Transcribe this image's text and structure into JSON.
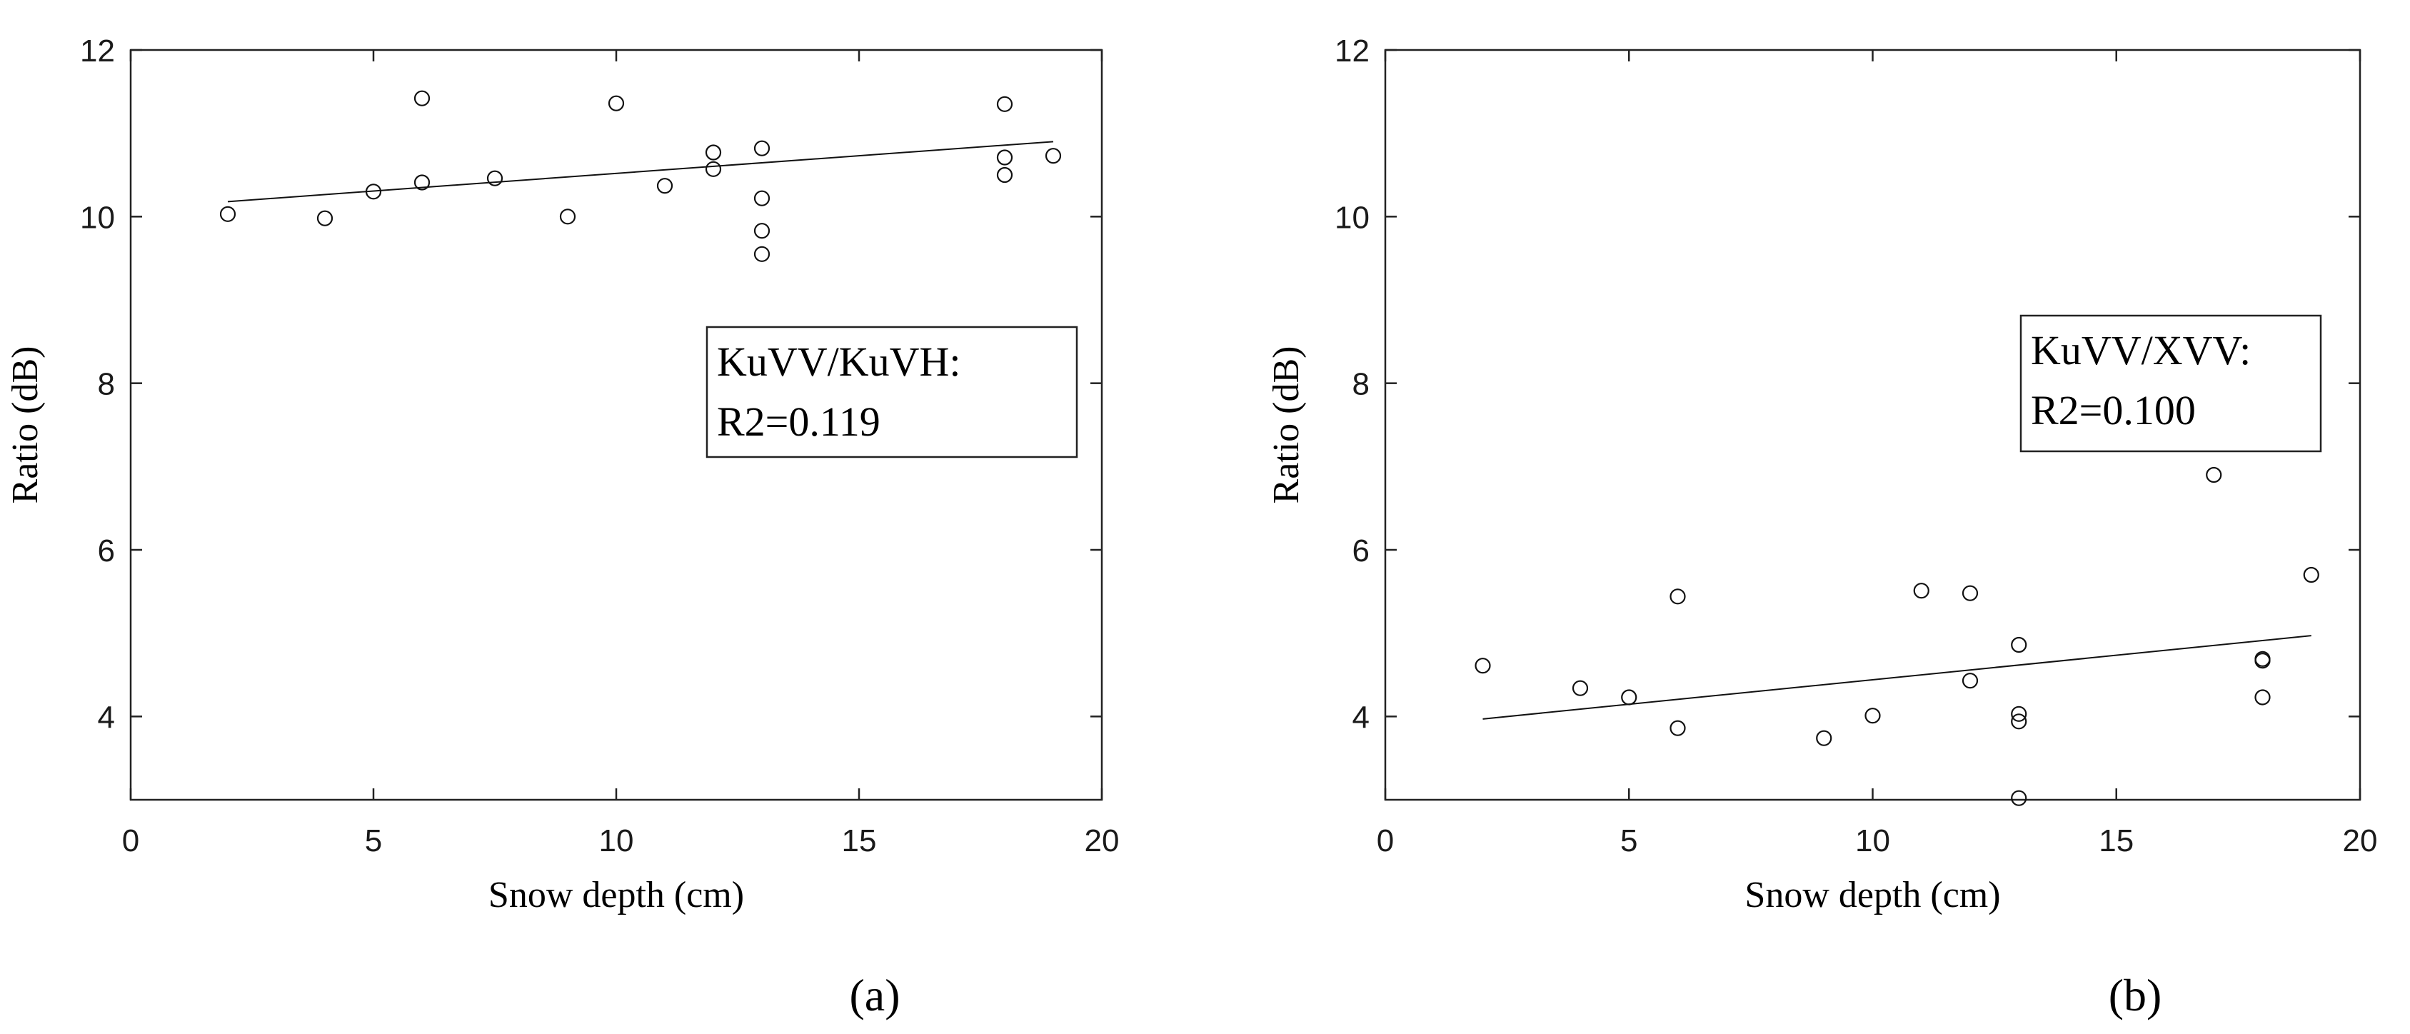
{
  "chart_data": [
    {
      "type": "scatter",
      "xlabel": "Snow depth (cm)",
      "ylabel": "Ratio (dB)",
      "xlim": [
        0,
        20
      ],
      "ylim": [
        3,
        12
      ],
      "xticks": [
        "0",
        "5",
        "10",
        "15",
        "20"
      ],
      "yticks": [
        "4",
        "6",
        "8",
        "10",
        "12"
      ],
      "xtick_values": [
        0,
        5,
        10,
        15,
        20
      ],
      "ytick_values": [
        4,
        6,
        8,
        10,
        12
      ],
      "legend_lines": [
        "KuVV/KuVH:",
        "R2=0.119"
      ],
      "legend_position": "right",
      "panel_label": "(a)",
      "points": [
        {
          "x": 2,
          "y": 10.03
        },
        {
          "x": 4,
          "y": 9.98
        },
        {
          "x": 5,
          "y": 10.3
        },
        {
          "x": 6,
          "y": 11.42
        },
        {
          "x": 6,
          "y": 10.41
        },
        {
          "x": 7.5,
          "y": 10.46
        },
        {
          "x": 9,
          "y": 10.0
        },
        {
          "x": 10,
          "y": 11.36
        },
        {
          "x": 11,
          "y": 10.37
        },
        {
          "x": 12,
          "y": 10.77
        },
        {
          "x": 12,
          "y": 10.57
        },
        {
          "x": 13,
          "y": 10.82
        },
        {
          "x": 13,
          "y": 10.22
        },
        {
          "x": 13,
          "y": 9.83
        },
        {
          "x": 13,
          "y": 9.55
        },
        {
          "x": 18,
          "y": 11.35
        },
        {
          "x": 18,
          "y": 10.71
        },
        {
          "x": 18,
          "y": 10.5
        },
        {
          "x": 19,
          "y": 10.73
        }
      ],
      "fit_line": [
        {
          "x": 2,
          "y": 10.18
        },
        {
          "x": 19,
          "y": 10.9
        }
      ],
      "grid": false
    },
    {
      "type": "scatter",
      "xlabel": "Snow depth (cm)",
      "ylabel": "Ratio (dB)",
      "xlim": [
        0,
        20
      ],
      "ylim": [
        3,
        12
      ],
      "xticks": [
        "0",
        "5",
        "10",
        "15",
        "20"
      ],
      "yticks": [
        "4",
        "6",
        "8",
        "10",
        "12"
      ],
      "xtick_values": [
        0,
        5,
        10,
        15,
        20
      ],
      "ytick_values": [
        4,
        6,
        8,
        10,
        12
      ],
      "legend_lines": [
        "KuVV/XVV:",
        "R2=0.100"
      ],
      "legend_position": "top-right",
      "panel_label": "(b)",
      "points": [
        {
          "x": 2,
          "y": 4.61
        },
        {
          "x": 4,
          "y": 4.34
        },
        {
          "x": 5,
          "y": 4.23
        },
        {
          "x": 6,
          "y": 5.44
        },
        {
          "x": 6,
          "y": 3.86
        },
        {
          "x": 9,
          "y": 3.74
        },
        {
          "x": 10,
          "y": 4.01
        },
        {
          "x": 11,
          "y": 5.51
        },
        {
          "x": 12,
          "y": 5.48
        },
        {
          "x": 12,
          "y": 4.43
        },
        {
          "x": 13,
          "y": 4.86
        },
        {
          "x": 13,
          "y": 4.03
        },
        {
          "x": 13,
          "y": 3.94
        },
        {
          "x": 13,
          "y": 3.02
        },
        {
          "x": 17,
          "y": 6.9
        },
        {
          "x": 18,
          "y": 4.69
        },
        {
          "x": 18,
          "y": 4.67
        },
        {
          "x": 18,
          "y": 4.23
        },
        {
          "x": 19,
          "y": 5.7
        }
      ],
      "fit_line": [
        {
          "x": 2,
          "y": 3.97
        },
        {
          "x": 19,
          "y": 4.97
        }
      ],
      "grid": false
    }
  ]
}
